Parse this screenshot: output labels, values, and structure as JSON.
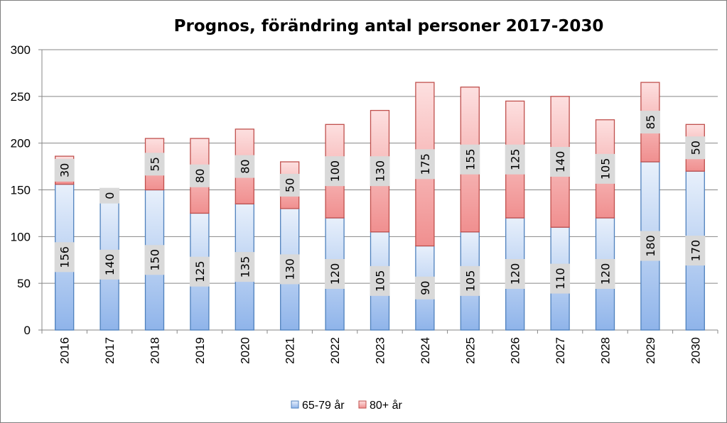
{
  "chart_data": {
    "type": "bar",
    "stacked": true,
    "title": "Prognos, förändring antal personer 2017-2030",
    "categories": [
      "2016",
      "2017",
      "2018",
      "2019",
      "2020",
      "2021",
      "2022",
      "2023",
      "2024",
      "2025",
      "2026",
      "2027",
      "2028",
      "2029",
      "2030"
    ],
    "series": [
      {
        "name": "65-79 år",
        "values": [
          156,
          140,
          150,
          125,
          135,
          130,
          120,
          105,
          90,
          105,
          120,
          110,
          120,
          180,
          170
        ],
        "color": "#4f81bd",
        "fill_top": "#e8f0fb",
        "fill_bottom": "#8fb4ea"
      },
      {
        "name": "80+ år",
        "values": [
          30,
          0,
          55,
          80,
          80,
          50,
          100,
          130,
          175,
          155,
          125,
          140,
          105,
          85,
          50
        ],
        "color": "#c0504d",
        "fill_top": "#fde0e0",
        "fill_bottom": "#f08f8f"
      }
    ],
    "ylim": [
      0,
      300
    ],
    "yticks": [
      "0",
      "50",
      "100",
      "150",
      "200",
      "250",
      "300"
    ],
    "grid": true,
    "legend": "bottom"
  }
}
